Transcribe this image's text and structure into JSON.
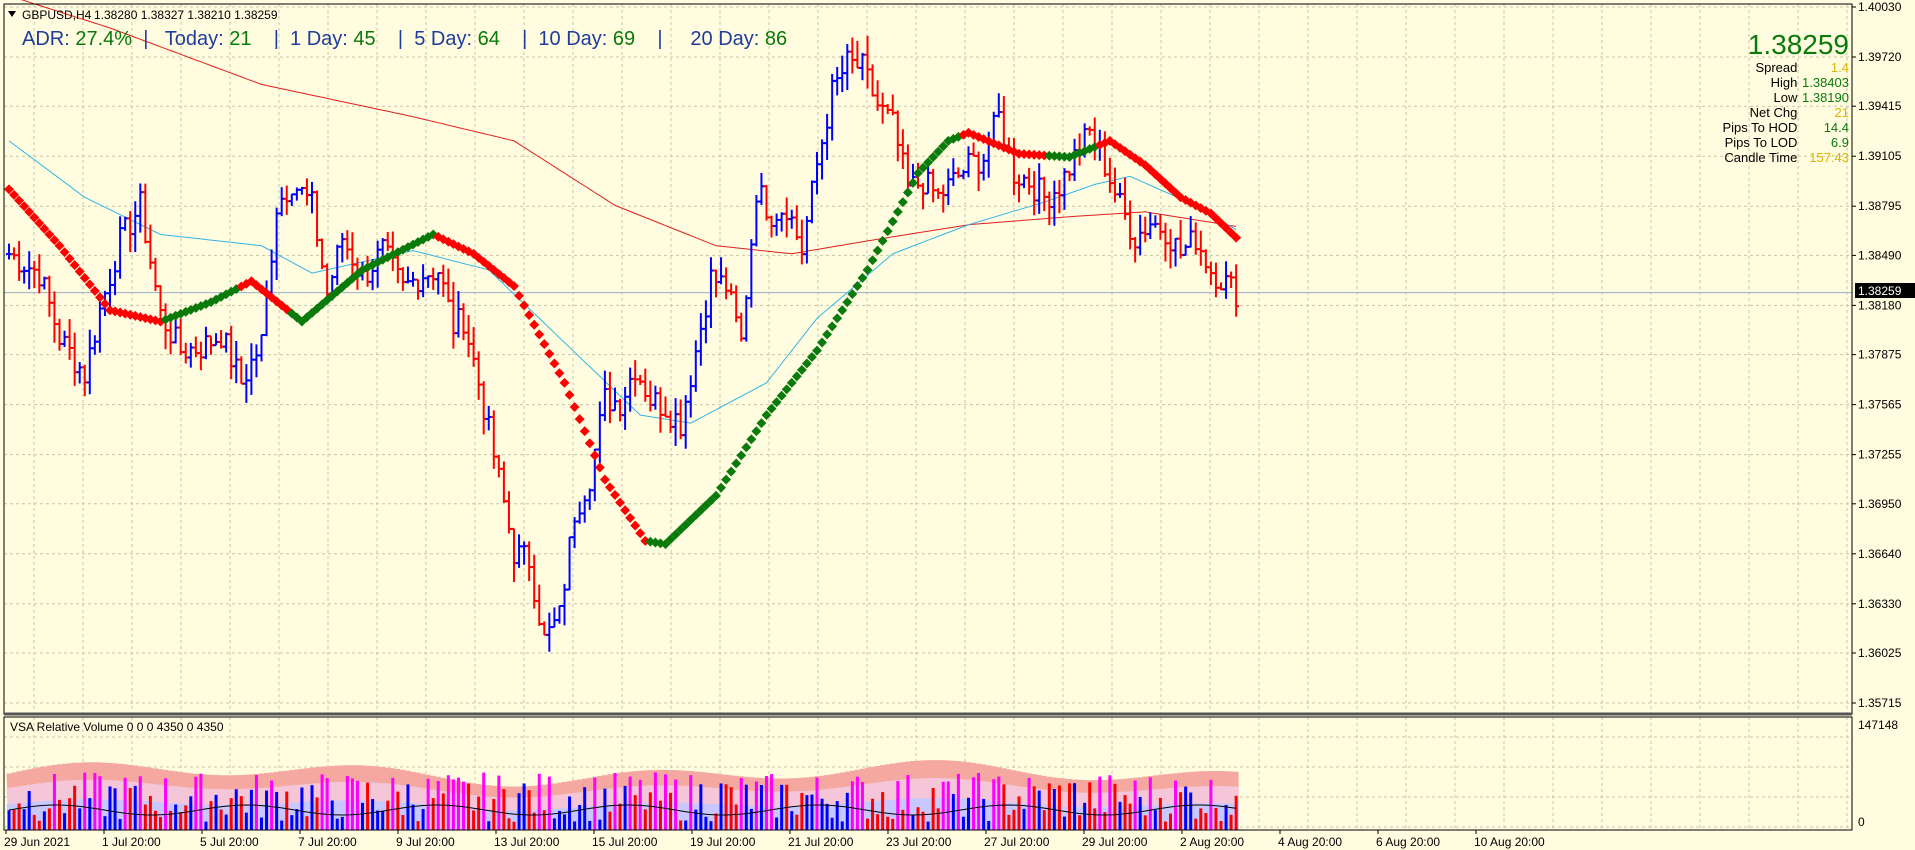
{
  "header": {
    "symbol": "GBPUSD,H4",
    "ohlc": "1.38280 1.38327 1.38210 1.38259"
  },
  "adr": {
    "adr_label": "ADR:",
    "adr_value": "27.4%",
    "today_label": "Today:",
    "today_value": "21",
    "day1_label": "1 Day:",
    "day1_value": "45",
    "day5_label": "5 Day:",
    "day5_value": "64",
    "day10_label": "10 Day:",
    "day10_value": "69",
    "day20_label": "20 Day:",
    "day20_value": "86"
  },
  "info": {
    "price": "1.38259",
    "spread_label": "Spread",
    "spread_value": "1.4",
    "high_label": "High",
    "high_value": "1.38403",
    "low_label": "Low",
    "low_value": "1.38190",
    "netchg_label": "Net Chg",
    "netchg_value": "21",
    "pips_hod_label": "Pips To HOD",
    "pips_hod_value": "14.4",
    "pips_lod_label": "Pips To LOD",
    "pips_lod_value": "6.9",
    "candle_label": "Candle Time",
    "candle_value": "157:43"
  },
  "volume_pane": {
    "label": "VSA Relative Volume 0 0 0 4350 0 4350",
    "max_label": "147148",
    "min_label": "0"
  },
  "colors": {
    "background": "#fffce0",
    "up_bar": "#0000ff",
    "down_bar": "#ff0000",
    "ma_long": "#e02020",
    "ma_short": "#33b5e5",
    "trend_up": "#0a7a0a",
    "trend_down": "#ff0000",
    "current_price_line": "#9ab0c8"
  },
  "chart_data": {
    "type": "ohlc",
    "ylim": [
      1.35715,
      1.4003
    ],
    "y_ticks": [
      "1.40030",
      "1.39720",
      "1.39415",
      "1.39105",
      "1.38795",
      "1.38490",
      "1.38180",
      "1.37875",
      "1.37565",
      "1.37255",
      "1.36950",
      "1.36640",
      "1.36330",
      "1.36025",
      "1.35715"
    ],
    "current_price": "1.38259",
    "x_ticks": [
      "29 Jun 2021",
      "1 Jul 20:00",
      "5 Jul 20:00",
      "7 Jul 20:00",
      "9 Jul 20:00",
      "13 Jul 20:00",
      "15 Jul 20:00",
      "19 Jul 20:00",
      "21 Jul 20:00",
      "23 Jul 20:00",
      "27 Jul 20:00",
      "29 Jul 20:00",
      "2 Aug 20:00",
      "4 Aug 20:00",
      "6 Aug 20:00",
      "10 Aug 20:00"
    ],
    "close_keypoints": [
      [
        0,
        1.385
      ],
      [
        6,
        1.3838
      ],
      [
        10,
        1.3798
      ],
      [
        15,
        1.3775
      ],
      [
        18,
        1.3815
      ],
      [
        22,
        1.3858
      ],
      [
        26,
        1.388
      ],
      [
        30,
        1.3812
      ],
      [
        34,
        1.379
      ],
      [
        38,
        1.3792
      ],
      [
        42,
        1.38
      ],
      [
        46,
        1.377
      ],
      [
        50,
        1.3795
      ],
      [
        53,
        1.388
      ],
      [
        56,
        1.3895
      ],
      [
        60,
        1.388
      ],
      [
        63,
        1.3825
      ],
      [
        66,
        1.386
      ],
      [
        70,
        1.3835
      ],
      [
        74,
        1.3852
      ],
      [
        78,
        1.3828
      ],
      [
        82,
        1.3838
      ],
      [
        85,
        1.384
      ],
      [
        88,
        1.3805
      ],
      [
        90,
        1.381
      ],
      [
        93,
        1.377
      ],
      [
        97,
        1.371
      ],
      [
        100,
        1.3665
      ],
      [
        103,
        1.366
      ],
      [
        106,
        1.361
      ],
      [
        109,
        1.3625
      ],
      [
        112,
        1.369
      ],
      [
        115,
        1.3712
      ],
      [
        118,
        1.376
      ],
      [
        121,
        1.3758
      ],
      [
        124,
        1.378
      ],
      [
        127,
        1.376
      ],
      [
        130,
        1.3755
      ],
      [
        133,
        1.3745
      ],
      [
        136,
        1.379
      ],
      [
        139,
        1.3835
      ],
      [
        142,
        1.383
      ],
      [
        145,
        1.3795
      ],
      [
        148,
        1.389
      ],
      [
        151,
        1.3875
      ],
      [
        154,
        1.388
      ],
      [
        157,
        1.3852
      ],
      [
        160,
        1.3905
      ],
      [
        163,
        1.395
      ],
      [
        166,
        1.3968
      ],
      [
        169,
        1.3965
      ],
      [
        172,
        1.3942
      ],
      [
        175,
        1.393
      ],
      [
        178,
        1.389
      ],
      [
        181,
        1.3895
      ],
      [
        184,
        1.3885
      ],
      [
        187,
        1.3895
      ],
      [
        190,
        1.3905
      ],
      [
        193,
        1.391
      ],
      [
        196,
        1.3935
      ],
      [
        199,
        1.39
      ],
      [
        202,
        1.3895
      ],
      [
        205,
        1.3885
      ],
      [
        208,
        1.3892
      ],
      [
        211,
        1.391
      ],
      [
        214,
        1.3925
      ],
      [
        217,
        1.3905
      ],
      [
        220,
        1.388
      ],
      [
        223,
        1.386
      ],
      [
        226,
        1.387
      ],
      [
        229,
        1.3865
      ],
      [
        232,
        1.385
      ],
      [
        235,
        1.386
      ],
      [
        238,
        1.384
      ],
      [
        241,
        1.3832
      ],
      [
        243,
        1.3826
      ]
    ],
    "ma_long_keypoints": [
      [
        0,
        1.401
      ],
      [
        20,
        1.399
      ],
      [
        50,
        1.3955
      ],
      [
        80,
        1.3935
      ],
      [
        100,
        1.392
      ],
      [
        120,
        1.388
      ],
      [
        140,
        1.3855
      ],
      [
        155,
        1.385
      ],
      [
        170,
        1.3858
      ],
      [
        190,
        1.3868
      ],
      [
        210,
        1.3873
      ],
      [
        225,
        1.3876
      ],
      [
        243,
        1.3867
      ]
    ],
    "ma_short_keypoints": [
      [
        0,
        1.392
      ],
      [
        15,
        1.3885
      ],
      [
        30,
        1.3862
      ],
      [
        50,
        1.3855
      ],
      [
        60,
        1.3838
      ],
      [
        80,
        1.3852
      ],
      [
        95,
        1.384
      ],
      [
        110,
        1.3795
      ],
      [
        125,
        1.375
      ],
      [
        135,
        1.3745
      ],
      [
        150,
        1.377
      ],
      [
        160,
        1.381
      ],
      [
        175,
        1.385
      ],
      [
        190,
        1.3868
      ],
      [
        205,
        1.3882
      ],
      [
        215,
        1.3893
      ],
      [
        222,
        1.3898
      ],
      [
        235,
        1.388
      ],
      [
        243,
        1.3865
      ]
    ],
    "trend_keypoints": [
      [
        0,
        1.389
      ],
      [
        10,
        1.3855
      ],
      [
        20,
        1.3815
      ],
      [
        30,
        1.3808
      ],
      [
        40,
        1.382
      ],
      [
        48,
        1.3833
      ],
      [
        58,
        1.3808
      ],
      [
        70,
        1.384
      ],
      [
        84,
        1.3862
      ],
      [
        92,
        1.385
      ],
      [
        100,
        1.383
      ],
      [
        110,
        1.377
      ],
      [
        118,
        1.371
      ],
      [
        126,
        1.3672
      ],
      [
        130,
        1.367
      ],
      [
        140,
        1.37
      ],
      [
        150,
        1.375
      ],
      [
        160,
        1.379
      ],
      [
        170,
        1.384
      ],
      [
        180,
        1.39
      ],
      [
        186,
        1.392
      ],
      [
        190,
        1.3925
      ],
      [
        200,
        1.3912
      ],
      [
        210,
        1.391
      ],
      [
        218,
        1.392
      ],
      [
        225,
        1.3905
      ],
      [
        232,
        1.3885
      ],
      [
        238,
        1.3875
      ],
      [
        243,
        1.386
      ]
    ],
    "trend_switches": [
      [
        0,
        "down"
      ],
      [
        31,
        "up"
      ],
      [
        46,
        "down"
      ],
      [
        56,
        "up"
      ],
      [
        85,
        "down"
      ],
      [
        127,
        "up"
      ],
      [
        189,
        "down"
      ],
      [
        206,
        "up"
      ],
      [
        216,
        "down"
      ]
    ],
    "bar_count": 244
  }
}
